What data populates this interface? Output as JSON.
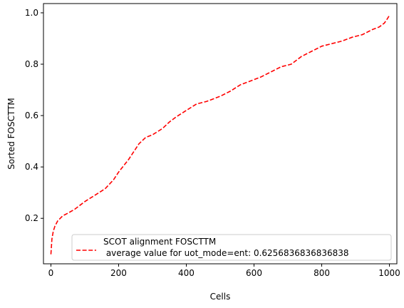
{
  "chart_data": {
    "type": "line",
    "title": "",
    "xlabel": "Cells",
    "ylabel": "Sorted FOSCTTM",
    "xlim": [
      -22,
      1022
    ],
    "ylim": [
      0.023,
      1.036
    ],
    "xticks": [
      0,
      200,
      400,
      600,
      800,
      1000
    ],
    "yticks": [
      0.2,
      0.4,
      0.6,
      0.8,
      1.0
    ],
    "xtick_labels": [
      "0",
      "200",
      "400",
      "600",
      "800",
      "1000"
    ],
    "ytick_labels": [
      "0.2",
      "0.4",
      "0.6",
      "0.8",
      "1.0"
    ],
    "grid": false,
    "legend_position": "lower-right",
    "series": [
      {
        "name": "SCOT alignment FOSCTTM\n average value for uot_mode=ent: 0.6256836836836838",
        "color": "#ff0000",
        "line_style": "dashed",
        "x": [
          0,
          3,
          7,
          12,
          20,
          35,
          50,
          70,
          100,
          130,
          160,
          185,
          200,
          215,
          230,
          245,
          260,
          280,
          300,
          330,
          350,
          370,
          400,
          430,
          460,
          500,
          530,
          560,
          590,
          620,
          650,
          680,
          710,
          740,
          770,
          800,
          830,
          860,
          890,
          920,
          950,
          970,
          985,
          993,
          1000
        ],
        "y": [
          0.06,
          0.12,
          0.15,
          0.17,
          0.19,
          0.21,
          0.22,
          0.235,
          0.265,
          0.29,
          0.315,
          0.35,
          0.38,
          0.405,
          0.43,
          0.46,
          0.49,
          0.515,
          0.525,
          0.55,
          0.575,
          0.595,
          0.62,
          0.645,
          0.655,
          0.675,
          0.695,
          0.72,
          0.735,
          0.75,
          0.77,
          0.79,
          0.8,
          0.83,
          0.85,
          0.87,
          0.88,
          0.89,
          0.905,
          0.915,
          0.935,
          0.945,
          0.96,
          0.975,
          0.99
        ]
      }
    ]
  }
}
